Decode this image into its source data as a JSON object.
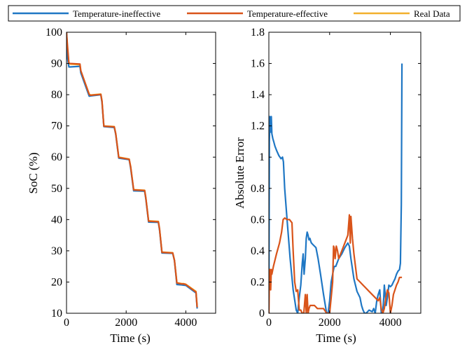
{
  "colors": {
    "temp_ineffective": "#1f77c4",
    "temp_effective": "#d9541a",
    "real_data": "#f2b02d"
  },
  "legend": {
    "placement": "top",
    "entries": [
      "Temperature-ineffective",
      "Temperature-effective",
      "Real Data"
    ]
  },
  "chart_data": [
    {
      "type": "line",
      "xlabel": "Time (s)",
      "ylabel": "SoC (%)",
      "xlim": [
        0,
        5000
      ],
      "ylim": [
        10,
        100
      ],
      "xticks": [
        0,
        2000,
        4000
      ],
      "yticks": [
        10,
        20,
        30,
        40,
        50,
        60,
        70,
        80,
        90,
        100
      ],
      "grid": false,
      "series": [
        {
          "name": "Real Data",
          "color_key": "real_data",
          "x": [
            0,
            30,
            80,
            120,
            450,
            480,
            760,
            800,
            1150,
            1190,
            1250,
            1600,
            1650,
            1750,
            2100,
            2150,
            2250,
            2620,
            2660,
            2750,
            3080,
            3120,
            3200,
            3560,
            3620,
            3700,
            3860,
            3920,
            4000,
            4340,
            4380
          ],
          "y": [
            100,
            95,
            89.9,
            89.8,
            89.6,
            87.5,
            80.2,
            79.9,
            80.2,
            78,
            70,
            69.8,
            67.6,
            60,
            59.4,
            57,
            49.6,
            49.4,
            47,
            39.6,
            39.4,
            37,
            29.6,
            29.4,
            27,
            19.8,
            19.5,
            19.5,
            19.3,
            17,
            12
          ]
        },
        {
          "name": "Temperature-ineffective",
          "color_key": "temp_ineffective",
          "x": [
            0,
            30,
            80,
            120,
            450,
            480,
            760,
            800,
            1150,
            1190,
            1250,
            1600,
            1650,
            1750,
            2100,
            2150,
            2250,
            2620,
            2660,
            2750,
            3080,
            3120,
            3200,
            3560,
            3620,
            3700,
            3860,
            3920,
            4000,
            4340,
            4380
          ],
          "y": [
            100,
            92,
            88.9,
            88.9,
            89.1,
            87,
            79.5,
            79.6,
            80,
            77.5,
            69.8,
            69.5,
            67.3,
            59.7,
            59.2,
            56.5,
            49.2,
            49.1,
            46.6,
            39.2,
            39.1,
            36.6,
            29.3,
            29.2,
            26.8,
            19.2,
            19.1,
            19,
            18.9,
            16.5,
            11.5
          ]
        },
        {
          "name": "Temperature-effective",
          "color_key": "temp_effective",
          "x": [
            0,
            30,
            80,
            120,
            450,
            480,
            760,
            800,
            1150,
            1190,
            1250,
            1600,
            1650,
            1750,
            2100,
            2150,
            2250,
            2620,
            2660,
            2750,
            3080,
            3120,
            3200,
            3560,
            3620,
            3700,
            3860,
            3920,
            4000,
            4340,
            4380
          ],
          "y": [
            100,
            96,
            90.1,
            90,
            89.8,
            87.7,
            80.1,
            79.8,
            80.1,
            77.9,
            69.9,
            69.7,
            67.5,
            59.9,
            59.3,
            56.9,
            49.5,
            49.3,
            46.9,
            39.5,
            39.3,
            36.9,
            29.5,
            29.3,
            26.9,
            19.7,
            19.4,
            19.4,
            19.2,
            16.8,
            11.9
          ]
        }
      ]
    },
    {
      "type": "line",
      "xlabel": "Time (s)",
      "ylabel": "Absolute Error",
      "xlim": [
        0,
        5000
      ],
      "ylim": [
        0,
        1.8
      ],
      "xticks": [
        0,
        2000,
        4000
      ],
      "yticks": [
        0,
        0.2,
        0.4,
        0.6,
        0.8,
        1,
        1.2,
        1.4,
        1.6,
        1.8
      ],
      "grid": false,
      "series": [
        {
          "name": "Temperature-ineffective",
          "color_key": "temp_ineffective",
          "x": [
            0,
            15,
            35,
            55,
            80,
            100,
            130,
            160,
            200,
            260,
            330,
            400,
            450,
            480,
            520,
            600,
            700,
            800,
            900,
            950,
            1000,
            1050,
            1100,
            1130,
            1160,
            1200,
            1230,
            1260,
            1290,
            1320,
            1350,
            1380,
            1400,
            1450,
            1550,
            1620,
            1700,
            1800,
            1900,
            1950,
            2000,
            2050,
            2100,
            2150,
            2200,
            2300,
            2400,
            2500,
            2600,
            2650,
            2700,
            2800,
            2900,
            3000,
            3050,
            3100,
            3150,
            3200,
            3300,
            3400,
            3450,
            3500,
            3550,
            3600,
            3650,
            3700,
            3750,
            3780,
            3800,
            3830,
            3860,
            3900,
            3950,
            4000,
            4050,
            4100,
            4150,
            4200,
            4250,
            4300,
            4330,
            4360,
            4380
          ],
          "y": [
            0,
            1.1,
            1.26,
            1.16,
            1.26,
            1.15,
            1.12,
            1.1,
            1.07,
            1.04,
            1.01,
            0.99,
            1.0,
            0.97,
            0.8,
            0.6,
            0.35,
            0.15,
            0.02,
            0.0,
            0.1,
            0.18,
            0.32,
            0.38,
            0.25,
            0.35,
            0.48,
            0.52,
            0.5,
            0.47,
            0.48,
            0.46,
            0.45,
            0.44,
            0.42,
            0.35,
            0.25,
            0.12,
            0.0,
            0.0,
            0.08,
            0.2,
            0.25,
            0.3,
            0.3,
            0.35,
            0.38,
            0.42,
            0.45,
            0.43,
            0.35,
            0.22,
            0.14,
            0.1,
            0.05,
            0.02,
            0.0,
            0.0,
            0.02,
            0.01,
            0.03,
            0.0,
            0.08,
            0.12,
            0.15,
            0.0,
            0.02,
            0.1,
            0.18,
            0.12,
            0.05,
            0.1,
            0.18,
            0.17,
            0.18,
            0.2,
            0.22,
            0.25,
            0.27,
            0.28,
            0.32,
            0.7,
            1.6
          ]
        },
        {
          "name": "Temperature-effective",
          "color_key": "temp_effective",
          "x": [
            0,
            20,
            40,
            60,
            80,
            100,
            150,
            250,
            350,
            420,
            470,
            520,
            600,
            680,
            720,
            760,
            800,
            850,
            900,
            950,
            1000,
            1050,
            1100,
            1150,
            1200,
            1230,
            1260,
            1290,
            1320,
            1360,
            1400,
            1500,
            1600,
            1700,
            1800,
            1900,
            2000,
            2050,
            2100,
            2130,
            2150,
            2180,
            2220,
            2260,
            2300,
            2400,
            2500,
            2600,
            2650,
            2680,
            2700,
            2750,
            2800,
            2900,
            3000,
            3100,
            3200,
            3300,
            3400,
            3500,
            3600,
            3650,
            3700,
            3750,
            3800,
            3850,
            3900,
            3950,
            4000,
            4050,
            4100,
            4150,
            4200,
            4250,
            4300,
            4350,
            4380
          ],
          "y": [
            0,
            0.28,
            0.28,
            0.15,
            0.28,
            0.25,
            0.3,
            0.38,
            0.45,
            0.52,
            0.6,
            0.61,
            0.6,
            0.6,
            0.59,
            0.58,
            0.4,
            0.2,
            0.14,
            0.15,
            0.02,
            0.02,
            0.0,
            0.0,
            0.12,
            0.0,
            0.12,
            0.0,
            0.03,
            0.05,
            0.05,
            0.05,
            0.03,
            0.03,
            0.03,
            0.0,
            0.0,
            0.1,
            0.2,
            0.43,
            0.42,
            0.35,
            0.43,
            0.4,
            0.35,
            0.4,
            0.45,
            0.5,
            0.63,
            0.45,
            0.62,
            0.48,
            0.38,
            0.22,
            0.2,
            0.18,
            0.16,
            0.14,
            0.12,
            0.1,
            0.08,
            0.1,
            0.03,
            0.0,
            0.03,
            0.1,
            0.15,
            0.13,
            0.0,
            0.05,
            0.12,
            0.15,
            0.18,
            0.2,
            0.23,
            0.23,
            0.23
          ]
        }
      ]
    }
  ]
}
